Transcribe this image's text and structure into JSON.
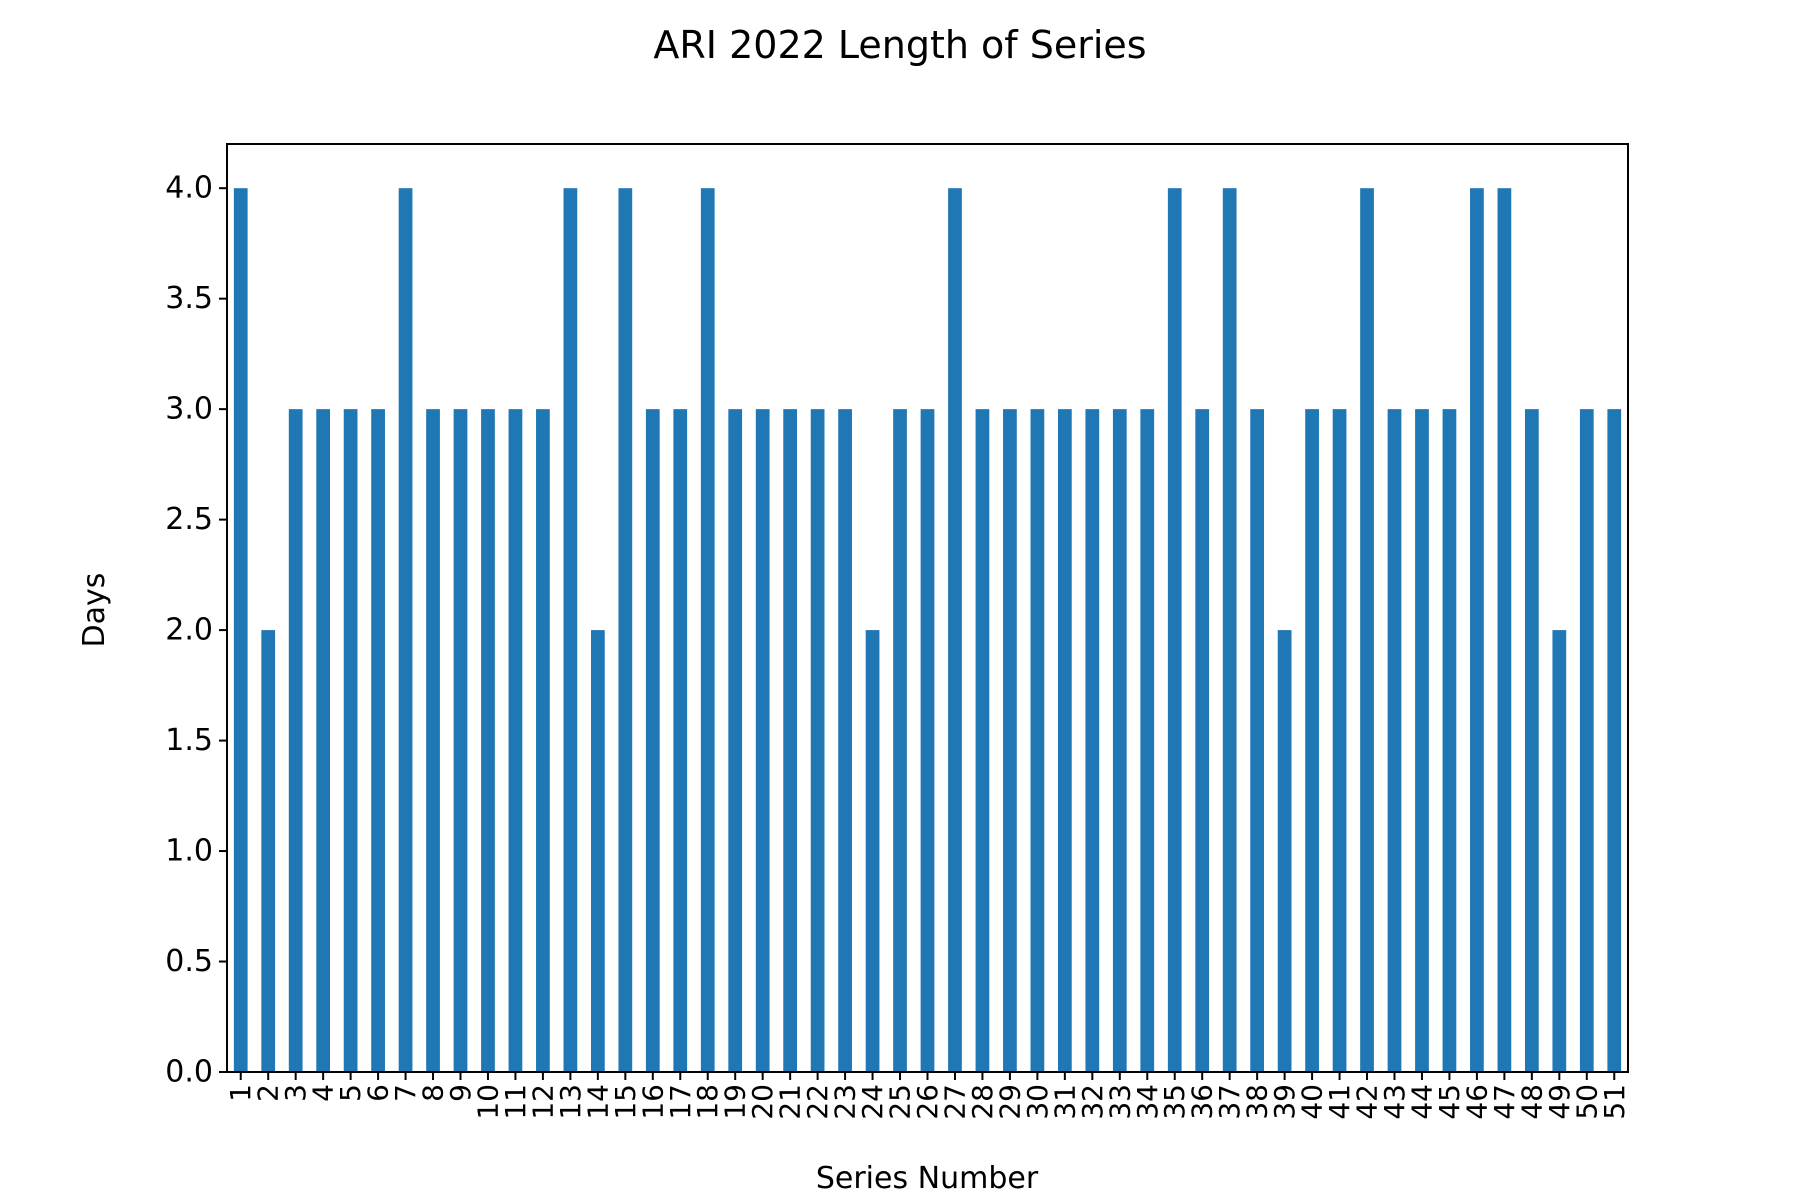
{
  "chart_data": {
    "type": "bar",
    "title": "ARI 2022 Length of Series",
    "xlabel": "Series Number",
    "ylabel": "Days",
    "ylim": [
      0,
      4.2
    ],
    "yticks": [
      "0.0",
      "0.5",
      "1.0",
      "1.5",
      "2.0",
      "2.5",
      "3.0",
      "3.5",
      "4.0"
    ],
    "grid": false,
    "legend": "none",
    "bar_color": "#1f77b4",
    "categories": [
      "1",
      "2",
      "3",
      "4",
      "5",
      "6",
      "7",
      "8",
      "9",
      "10",
      "11",
      "12",
      "13",
      "14",
      "15",
      "16",
      "17",
      "18",
      "19",
      "20",
      "21",
      "22",
      "23",
      "24",
      "25",
      "26",
      "27",
      "28",
      "29",
      "30",
      "31",
      "32",
      "33",
      "34",
      "35",
      "36",
      "37",
      "38",
      "39",
      "40",
      "41",
      "42",
      "43",
      "44",
      "45",
      "46",
      "47",
      "48",
      "49",
      "50",
      "51"
    ],
    "values": [
      4,
      2,
      3,
      3,
      3,
      3,
      4,
      3,
      3,
      3,
      3,
      3,
      4,
      2,
      4,
      3,
      3,
      4,
      3,
      3,
      3,
      3,
      3,
      2,
      3,
      3,
      4,
      3,
      3,
      3,
      3,
      3,
      3,
      3,
      4,
      3,
      4,
      3,
      2,
      3,
      3,
      4,
      3,
      3,
      3,
      4,
      4,
      3,
      2,
      3,
      3
    ]
  }
}
